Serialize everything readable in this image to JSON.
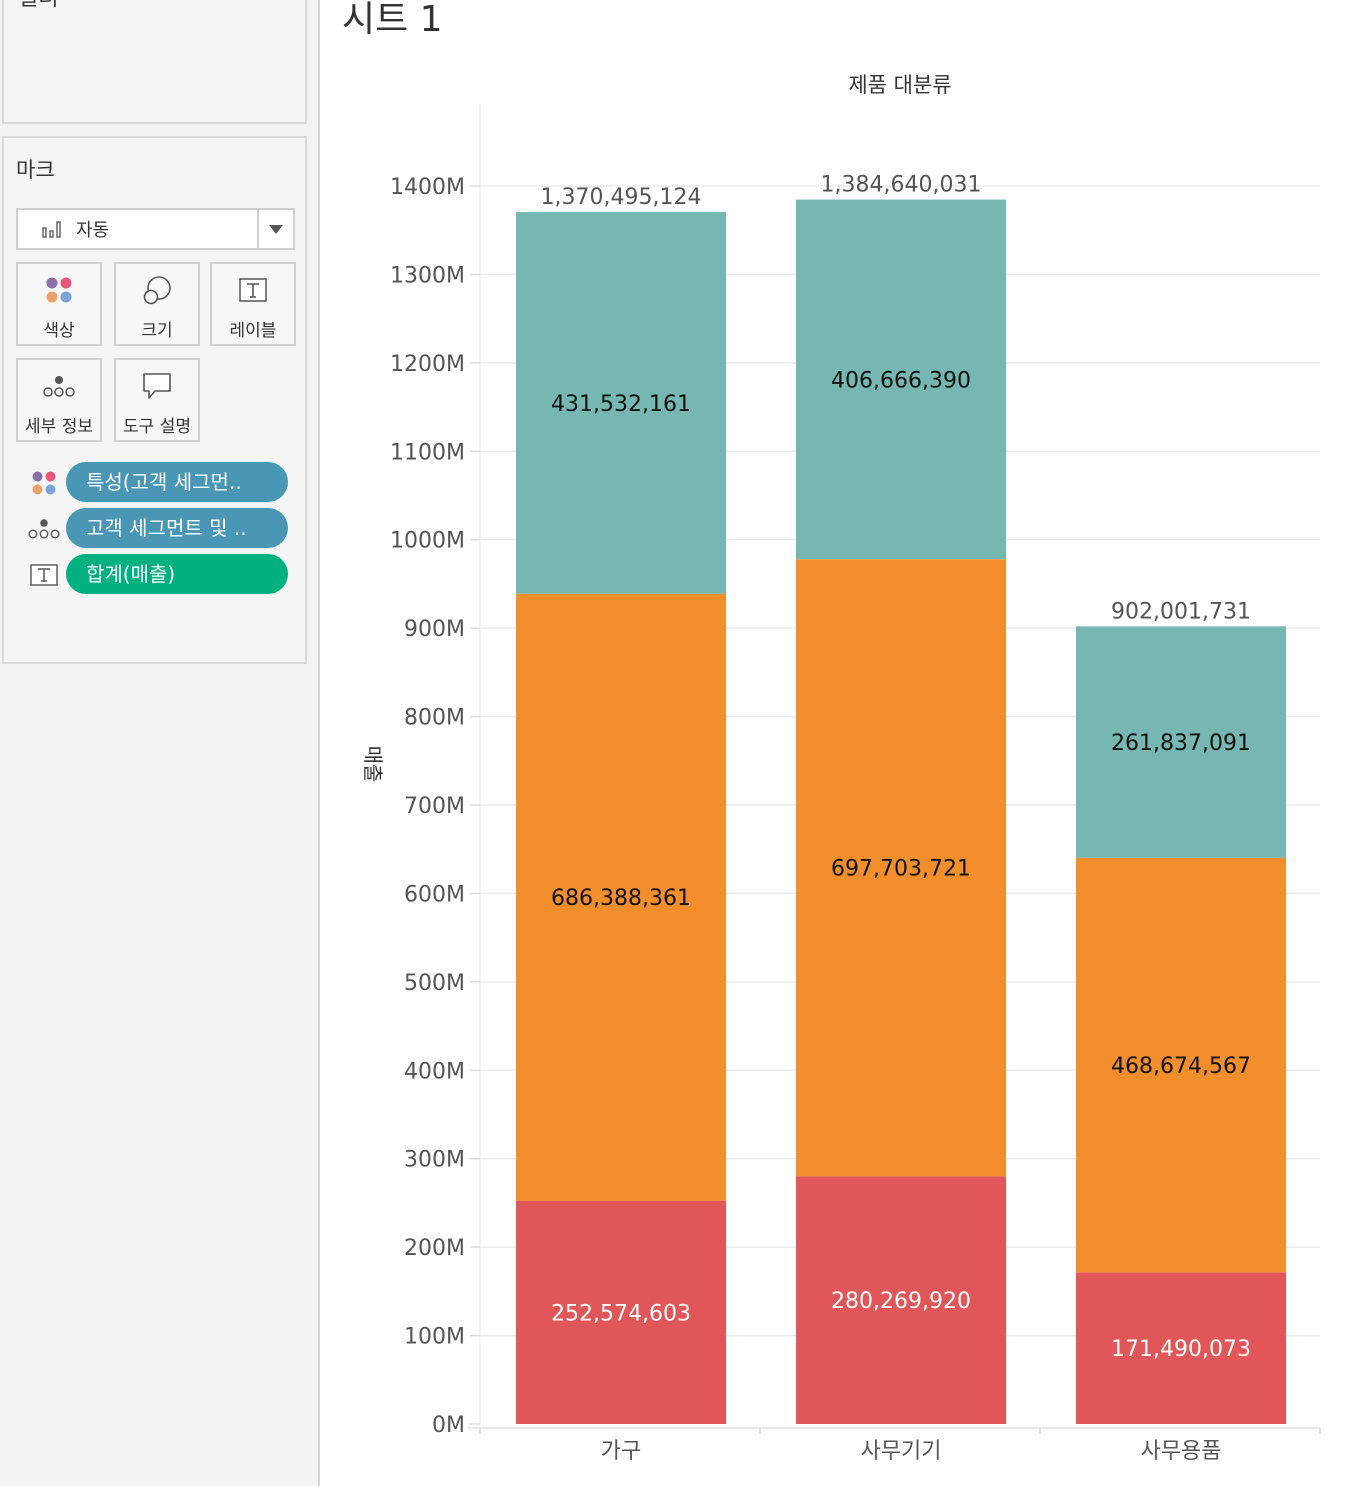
{
  "filters": {
    "title": "필터"
  },
  "marks": {
    "title": "마크",
    "mark_type": "자동",
    "buttons": {
      "color": "색상",
      "size": "크기",
      "label": "레이블",
      "detail": "세부 정보",
      "tooltip": "도구 설명"
    },
    "pills": [
      {
        "icon": "color-dots-icon",
        "label": "특성(고객 세그먼..",
        "color": "#4a96b5"
      },
      {
        "icon": "detail-dots-icon",
        "label": "고객 세그먼트 및 ..",
        "color": "#4a96b5"
      },
      {
        "icon": "text-label-icon",
        "label": "합계(매출)",
        "color": "#00b180"
      }
    ]
  },
  "sheet": {
    "title": "시트 1"
  },
  "chart_data": {
    "type": "bar",
    "stacked": true,
    "title": "제품 대분류",
    "xlabel": "",
    "ylabel": "매출",
    "categories": [
      "가구",
      "사무기기",
      "사무용품"
    ],
    "series": [
      {
        "name": "bottom",
        "color": "#e15759",
        "values": [
          252574603,
          280269920,
          171490073
        ],
        "labels": [
          "252,574,603",
          "280,269,920",
          "171,490,073"
        ]
      },
      {
        "name": "middle",
        "color": "#f28e2b",
        "values": [
          686388361,
          697703721,
          468674567
        ],
        "labels": [
          "686,388,361",
          "697,703,721",
          "468,674,567"
        ]
      },
      {
        "name": "top",
        "color": "#76b7b2",
        "values": [
          431532161,
          406666390,
          261837091
        ],
        "labels": [
          "431,532,161",
          "406,666,390",
          "261,837,091"
        ]
      }
    ],
    "totals": [
      1370495124,
      1384640031,
      902001731
    ],
    "total_labels": [
      "1,370,495,124",
      "1,384,640,031",
      "902,001,731"
    ],
    "ylim": [
      0,
      1400000000
    ],
    "yticks": [
      0,
      100000000,
      200000000,
      300000000,
      400000000,
      500000000,
      600000000,
      700000000,
      800000000,
      900000000,
      1000000000,
      1100000000,
      1200000000,
      1300000000,
      1400000000
    ],
    "ytick_labels": [
      "0M",
      "100M",
      "200M",
      "300M",
      "400M",
      "500M",
      "600M",
      "700M",
      "800M",
      "900M",
      "1000M",
      "1100M",
      "1200M",
      "1300M",
      "1400M"
    ],
    "grid": true
  }
}
